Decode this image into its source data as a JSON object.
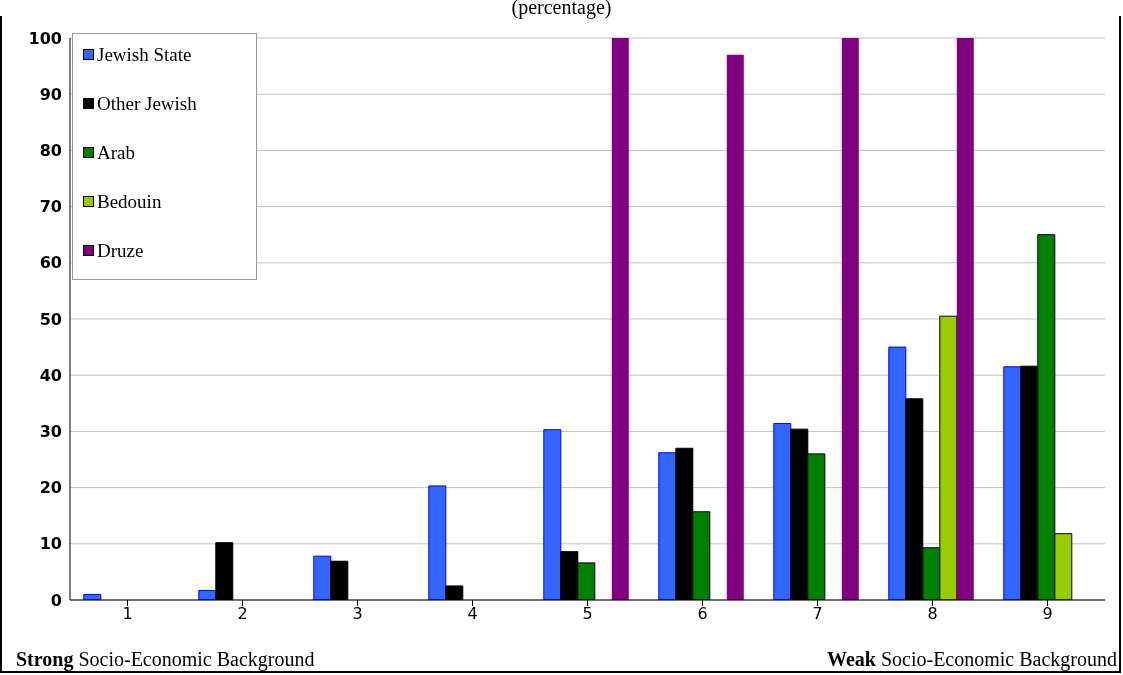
{
  "chart_data": {
    "type": "bar",
    "title": "(percentage)",
    "categories": [
      "1",
      "2",
      "3",
      "4",
      "5",
      "6",
      "7",
      "8",
      "9"
    ],
    "series": [
      {
        "name": "Jewish State",
        "color": "#3366ff",
        "values": [
          1,
          1.7,
          7.8,
          20.3,
          30.3,
          26.2,
          31.4,
          45,
          41.5
        ]
      },
      {
        "name": "Other Jewish",
        "color": "#000000",
        "values": [
          null,
          10.2,
          6.9,
          2.5,
          8.6,
          27,
          30.4,
          35.8,
          41.6
        ]
      },
      {
        "name": "Arab",
        "color": "#008000",
        "values": [
          null,
          null,
          null,
          null,
          6.6,
          15.7,
          26,
          9.3,
          65
        ]
      },
      {
        "name": "Bedouin",
        "color": "#99cc00",
        "values": [
          null,
          null,
          null,
          null,
          null,
          null,
          null,
          50.5,
          11.8
        ]
      },
      {
        "name": "Druze",
        "color": "#800080",
        "values": [
          null,
          null,
          null,
          null,
          100,
          97,
          100,
          100,
          null
        ]
      }
    ],
    "ylim": [
      0,
      100
    ],
    "yticks": [
      0,
      10,
      20,
      30,
      40,
      50,
      60,
      70,
      80,
      90,
      100
    ],
    "grid": "y",
    "legend": "top left",
    "annotations": [
      "Strong Socio-Economic Background",
      "Weak Socio-Economic Background"
    ]
  }
}
